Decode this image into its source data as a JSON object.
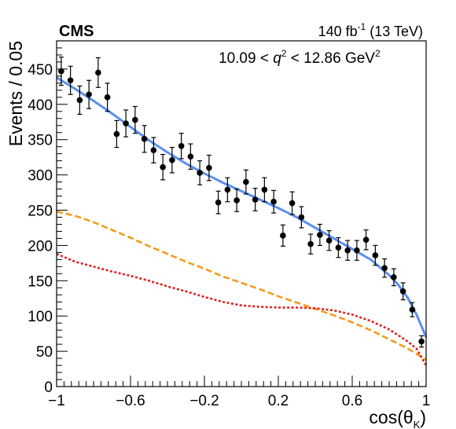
{
  "chart_data": {
    "type": "scatter",
    "experiment_label": "CMS",
    "luminosity_label": {
      "value": "140 fb",
      "superscript": "-1",
      "suffix": " (13 TeV)"
    },
    "range_label": {
      "prefix": "10.09 < ",
      "variable": "q",
      "variable_sup": "2",
      "middle": " < 12.86 GeV",
      "unit_sup": "2"
    },
    "xlabel": {
      "text": "cos(θ",
      "subscript": "K",
      "close": ")"
    },
    "ylabel": "Events / 0.05",
    "xlim": [
      -1,
      1
    ],
    "ylim": [
      0,
      490
    ],
    "x_ticks": [
      -1,
      -0.6,
      -0.2,
      0.2,
      0.6,
      1
    ],
    "x_tick_labels": [
      "−1",
      "−0.6",
      "−0.2",
      "0.2",
      "0.6",
      "1"
    ],
    "y_ticks": [
      0,
      50,
      100,
      150,
      200,
      250,
      300,
      350,
      400,
      450
    ],
    "y_tick_labels": [
      "0",
      "50",
      "100",
      "150",
      "200",
      "250",
      "300",
      "350",
      "400",
      "450"
    ],
    "grid": false,
    "colors": {
      "data": "#000000",
      "total_fit": "#5b8ff0",
      "component_orange": "#f59a1c",
      "component_red": "#e02020"
    },
    "data_points": [
      {
        "x": -0.975,
        "y": 447,
        "err": 20
      },
      {
        "x": -0.925,
        "y": 434,
        "err": 20
      },
      {
        "x": -0.875,
        "y": 406,
        "err": 20
      },
      {
        "x": -0.825,
        "y": 414,
        "err": 20
      },
      {
        "x": -0.775,
        "y": 445,
        "err": 21
      },
      {
        "x": -0.725,
        "y": 410,
        "err": 20
      },
      {
        "x": -0.675,
        "y": 358,
        "err": 19
      },
      {
        "x": -0.625,
        "y": 373,
        "err": 19
      },
      {
        "x": -0.575,
        "y": 378,
        "err": 19
      },
      {
        "x": -0.525,
        "y": 351,
        "err": 19
      },
      {
        "x": -0.475,
        "y": 335,
        "err": 18
      },
      {
        "x": -0.425,
        "y": 311,
        "err": 18
      },
      {
        "x": -0.375,
        "y": 321,
        "err": 18
      },
      {
        "x": -0.325,
        "y": 341,
        "err": 18
      },
      {
        "x": -0.275,
        "y": 326,
        "err": 18
      },
      {
        "x": -0.225,
        "y": 303,
        "err": 17
      },
      {
        "x": -0.175,
        "y": 310,
        "err": 18
      },
      {
        "x": -0.125,
        "y": 261,
        "err": 16
      },
      {
        "x": -0.075,
        "y": 279,
        "err": 17
      },
      {
        "x": -0.025,
        "y": 264,
        "err": 16
      },
      {
        "x": 0.025,
        "y": 290,
        "err": 17
      },
      {
        "x": 0.075,
        "y": 265,
        "err": 16
      },
      {
        "x": 0.125,
        "y": 279,
        "err": 17
      },
      {
        "x": 0.175,
        "y": 262,
        "err": 16
      },
      {
        "x": 0.225,
        "y": 214,
        "err": 15
      },
      {
        "x": 0.275,
        "y": 260,
        "err": 16
      },
      {
        "x": 0.325,
        "y": 240,
        "err": 15
      },
      {
        "x": 0.375,
        "y": 202,
        "err": 14
      },
      {
        "x": 0.425,
        "y": 215,
        "err": 15
      },
      {
        "x": 0.475,
        "y": 207,
        "err": 14
      },
      {
        "x": 0.525,
        "y": 197,
        "err": 14
      },
      {
        "x": 0.575,
        "y": 193,
        "err": 14
      },
      {
        "x": 0.625,
        "y": 193,
        "err": 14
      },
      {
        "x": 0.675,
        "y": 208,
        "err": 14
      },
      {
        "x": 0.725,
        "y": 186,
        "err": 14
      },
      {
        "x": 0.775,
        "y": 168,
        "err": 13
      },
      {
        "x": 0.825,
        "y": 155,
        "err": 12
      },
      {
        "x": 0.875,
        "y": 135,
        "err": 12
      },
      {
        "x": 0.925,
        "y": 109,
        "err": 10
      },
      {
        "x": 0.975,
        "y": 64,
        "err": 8
      }
    ],
    "series": [
      {
        "style": "solid",
        "color_key": "total_fit",
        "x": [
          -1,
          -0.9,
          -0.8,
          -0.7,
          -0.6,
          -0.5,
          -0.4,
          -0.3,
          -0.2,
          -0.1,
          0,
          0.1,
          0.2,
          0.3,
          0.4,
          0.5,
          0.6,
          0.7,
          0.8,
          0.85,
          0.9,
          0.95,
          1
        ],
        "y": [
          438,
          422,
          405,
          387,
          368,
          349,
          332,
          316,
          302,
          289,
          277,
          265,
          253,
          240,
          225,
          210,
          195,
          180,
          158,
          144,
          126,
          101,
          70
        ]
      },
      {
        "style": "dashed",
        "color_key": "component_orange",
        "x": [
          -1,
          -0.9,
          -0.8,
          -0.7,
          -0.6,
          -0.5,
          -0.4,
          -0.3,
          -0.2,
          -0.1,
          0,
          0.1,
          0.2,
          0.3,
          0.4,
          0.5,
          0.6,
          0.7,
          0.8,
          0.9,
          1
        ],
        "y": [
          248,
          242,
          233,
          222,
          211,
          199,
          188,
          177,
          167,
          156,
          147,
          138,
          128,
          119,
          110,
          101,
          91,
          80,
          67,
          54,
          38
        ]
      },
      {
        "style": "dotted",
        "color_key": "component_red",
        "x": [
          -1,
          -0.9,
          -0.8,
          -0.7,
          -0.6,
          -0.5,
          -0.4,
          -0.3,
          -0.2,
          -0.1,
          0,
          0.1,
          0.2,
          0.3,
          0.4,
          0.5,
          0.6,
          0.7,
          0.8,
          0.9,
          0.95,
          1
        ],
        "y": [
          188,
          177,
          170,
          163,
          157,
          150,
          142,
          135,
          127,
          120,
          115,
          113,
          112,
          112,
          111,
          108,
          102,
          93,
          81,
          64,
          53,
          30
        ]
      }
    ]
  }
}
